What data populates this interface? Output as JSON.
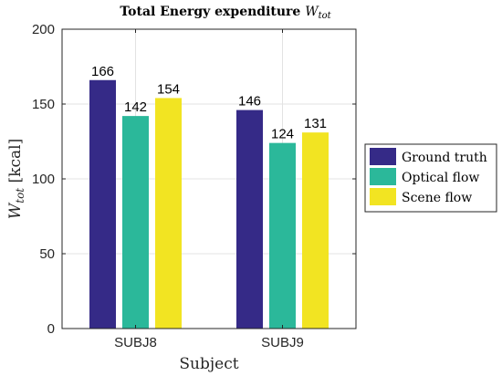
{
  "chart_data": {
    "type": "bar",
    "title": {
      "main": "Total Energy expenditure ",
      "symbol": "W",
      "subscript": "tot"
    },
    "xlabel": "Subject",
    "ylabel": {
      "symbol": "W",
      "subscript": "tot",
      "unit": " [kcal]"
    },
    "categories": [
      "SUBJ8",
      "SUBJ9"
    ],
    "series": [
      {
        "name": "Ground truth",
        "values": [
          166,
          146
        ],
        "color": "#352a87"
      },
      {
        "name": "Optical flow",
        "values": [
          142,
          124
        ],
        "color": "#2bb89a"
      },
      {
        "name": "Scene flow",
        "values": [
          154,
          131
        ],
        "color": "#f2e422"
      }
    ],
    "ylim": [
      0,
      200
    ],
    "yticks": [
      0,
      50,
      100,
      150,
      200
    ],
    "grid": true,
    "legend_position": "right"
  }
}
